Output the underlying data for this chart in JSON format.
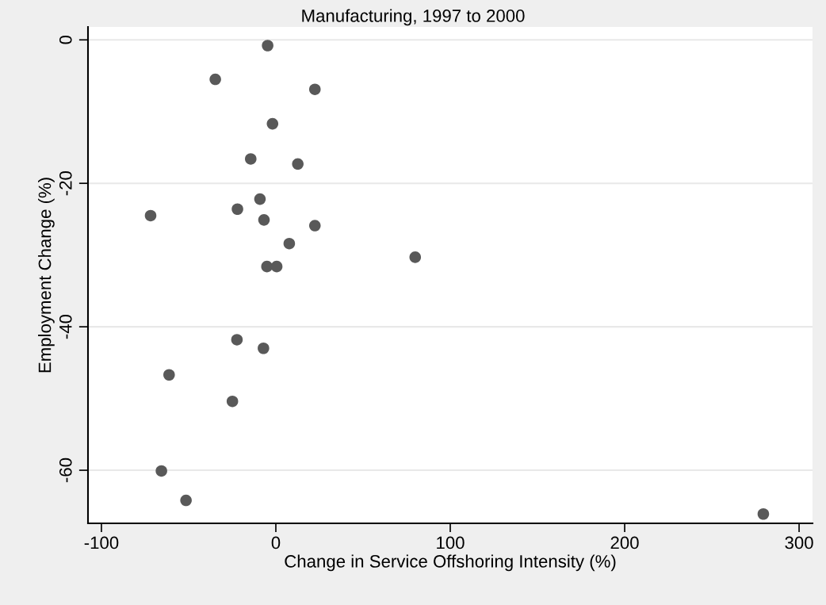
{
  "chart_data": {
    "type": "scatter",
    "title": "Manufacturing, 1997 to 2000",
    "xlabel": "Change in Service Offshoring Intensity (%)",
    "ylabel": "Employment Change (%)",
    "x": [
      -4.7,
      -34.7,
      22.4,
      -1.9,
      -14.4,
      12.6,
      -9.1,
      -22.0,
      -71.8,
      -6.8,
      22.4,
      7.7,
      79.9,
      -5.1,
      0.5,
      -22.3,
      -7.1,
      -61.2,
      -24.9,
      -65.6,
      -51.5,
      279.5
    ],
    "series": [
      {
        "color": "#595959",
        "values": [
          -0.8,
          -5.5,
          -6.9,
          -11.7,
          -16.6,
          -17.3,
          -22.2,
          -23.6,
          -24.5,
          -25.1,
          -25.9,
          -28.4,
          -30.3,
          -31.6,
          -31.6,
          -41.8,
          -43.0,
          -46.7,
          -50.4,
          -60.1,
          -64.2,
          -66.1
        ]
      }
    ],
    "xlim": [
      -107.7,
      307.7
    ],
    "ylim": [
      -67.4,
      1.8
    ],
    "xticks": [
      -100,
      0,
      100,
      200,
      300
    ],
    "yticks": [
      0,
      -20,
      -40,
      -60
    ],
    "grid": "y",
    "marker": "circle",
    "legend": false
  }
}
